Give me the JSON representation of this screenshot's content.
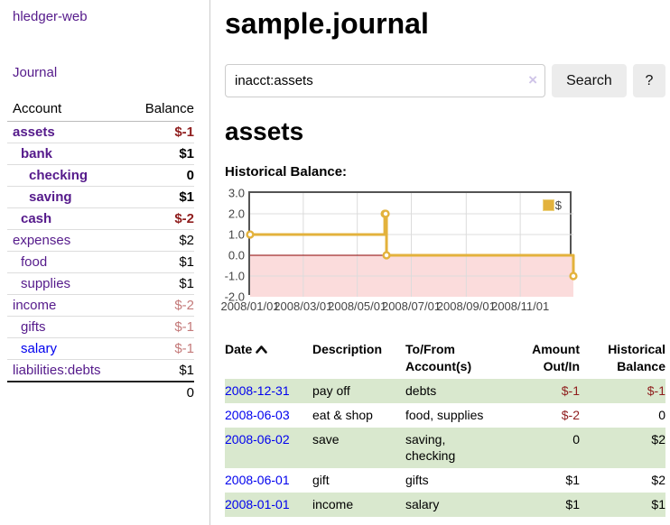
{
  "app": {
    "brand": "hledger-web"
  },
  "sidebar": {
    "journal_link": "Journal",
    "account_header": "Account",
    "balance_header": "Balance",
    "accounts": [
      {
        "name": "assets",
        "balance": "$-1",
        "indent": 0,
        "bold": true,
        "negative": true,
        "unvisited": false
      },
      {
        "name": "bank",
        "balance": "$1",
        "indent": 1,
        "bold": true,
        "negative": false,
        "unvisited": false
      },
      {
        "name": "checking",
        "balance": "0",
        "indent": 2,
        "bold": true,
        "negative": false,
        "unvisited": false
      },
      {
        "name": "saving",
        "balance": "$1",
        "indent": 2,
        "bold": true,
        "negative": false,
        "unvisited": false
      },
      {
        "name": "cash",
        "balance": "$-2",
        "indent": 1,
        "bold": true,
        "negative": true,
        "unvisited": false
      },
      {
        "name": "expenses",
        "balance": "$2",
        "indent": 0,
        "bold": false,
        "negative": false,
        "unvisited": false
      },
      {
        "name": "food",
        "balance": "$1",
        "indent": 1,
        "bold": false,
        "negative": false,
        "unvisited": false
      },
      {
        "name": "supplies",
        "balance": "$1",
        "indent": 1,
        "bold": false,
        "negative": false,
        "unvisited": false
      },
      {
        "name": "income",
        "balance": "$-2",
        "indent": 0,
        "bold": false,
        "negative": true,
        "unvisited": false
      },
      {
        "name": "gifts",
        "balance": "$-1",
        "indent": 1,
        "bold": false,
        "negative": true,
        "unvisited": false
      },
      {
        "name": "salary",
        "balance": "$-1",
        "indent": 1,
        "bold": false,
        "negative": true,
        "unvisited": true
      },
      {
        "name": "liabilities:debts",
        "balance": "$1",
        "indent": 0,
        "bold": false,
        "negative": false,
        "unvisited": false
      }
    ],
    "total": "0"
  },
  "header": {
    "title": "sample.journal"
  },
  "search": {
    "value": "inacct:assets",
    "clear_icon": "×",
    "button_label": "Search",
    "help_label": "?"
  },
  "account_page": {
    "heading": "assets",
    "chart_label": "Historical Balance:"
  },
  "chart_data": {
    "type": "line",
    "step": true,
    "title": "Historical Balance:",
    "series": [
      {
        "name": "$",
        "x": [
          "2008-01-01",
          "2008-06-01",
          "2008-06-02",
          "2008-06-03",
          "2008-12-31"
        ],
        "values": [
          1,
          2,
          2,
          0,
          -1
        ]
      }
    ],
    "xlim": [
      "2008-01-01",
      "2008-12-31"
    ],
    "ylim": [
      -2,
      3
    ],
    "yticks": [
      "3.0",
      "2.0",
      "1.0",
      "0.0",
      "-1.0",
      "-2.0"
    ],
    "xticks": [
      {
        "label": "2008/01/01",
        "date": "2008-01-01"
      },
      {
        "label": "2008/03/01",
        "date": "2008-03-01"
      },
      {
        "label": "2008/05/01",
        "date": "2008-05-01"
      },
      {
        "label": "2008/07/01",
        "date": "2008-07-01"
      },
      {
        "label": "2008/09/01",
        "date": "2008-09-01"
      },
      {
        "label": "2008/11/01",
        "date": "2008-11-01"
      }
    ],
    "legend": {
      "label": "$",
      "position": "top-right"
    },
    "grid": true,
    "colors": {
      "line": "#e3b23c",
      "marker_fill": "#ffffff",
      "negative_region": "#fbdcdc",
      "zero_line": "#8b0000",
      "gridline": "#dcdcdc",
      "plot_border": "#545454",
      "axis_text": "#444444"
    }
  },
  "register": {
    "headers": {
      "date": "Date",
      "description": "Description",
      "accounts": "To/From\nAccount(s)",
      "amount": "Amount\nOut/In",
      "balance": "Historical\nBalance"
    },
    "sort": {
      "column": "date",
      "direction": "asc"
    },
    "rows": [
      {
        "date": "2008-12-31",
        "description": "pay off",
        "accounts": "debts",
        "amount": "$-1",
        "balance": "$-1",
        "amount_negative": true,
        "balance_negative": true,
        "shaded": true
      },
      {
        "date": "2008-06-03",
        "description": "eat & shop",
        "accounts": "food, supplies",
        "amount": "$-2",
        "balance": "0",
        "amount_negative": true,
        "balance_negative": false,
        "shaded": false
      },
      {
        "date": "2008-06-02",
        "description": "save",
        "accounts": "saving,\nchecking",
        "amount": "0",
        "balance": "$2",
        "amount_negative": false,
        "balance_negative": false,
        "shaded": true
      },
      {
        "date": "2008-06-01",
        "description": "gift",
        "accounts": "gifts",
        "amount": "$1",
        "balance": "$2",
        "amount_negative": false,
        "balance_negative": false,
        "shaded": false
      },
      {
        "date": "2008-01-01",
        "description": "income",
        "accounts": "salary",
        "amount": "$1",
        "balance": "$1",
        "amount_negative": false,
        "balance_negative": false,
        "shaded": true
      }
    ]
  }
}
